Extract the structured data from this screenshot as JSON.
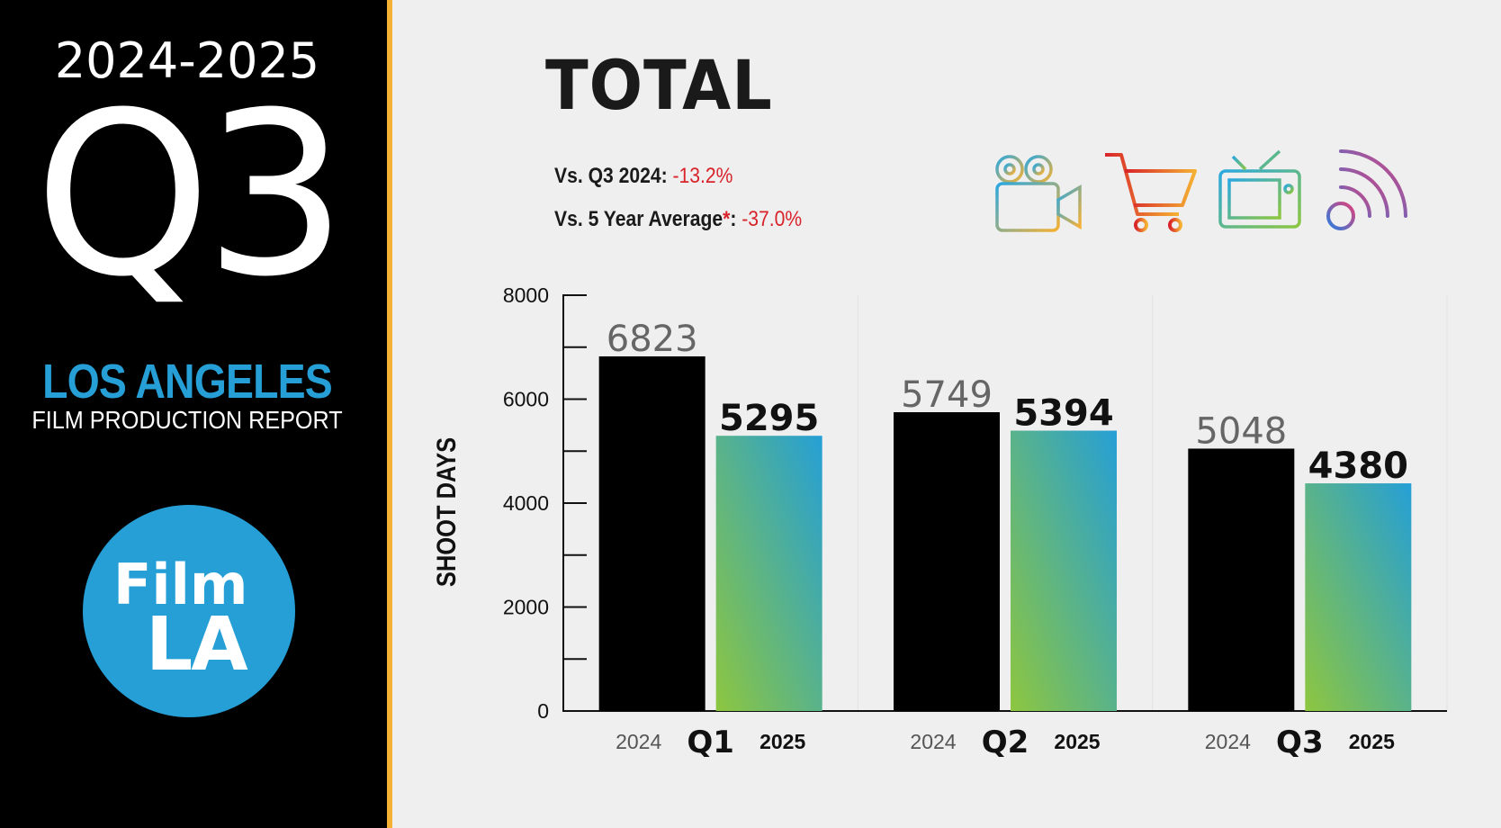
{
  "sidebar": {
    "years": "2024-2025",
    "quarter": "Q3",
    "city": "LOS ANGELES",
    "report": "FILM PRODUCTION REPORT",
    "logo_line1": "Film",
    "logo_line2": "LA"
  },
  "header": {
    "title": "TOTAL",
    "cmp1_label": "Vs. Q3 2024: ",
    "cmp1_value": "-13.2%",
    "cmp2_label": "Vs. 5 Year Average",
    "cmp2_asterisk": "*",
    "cmp2_colon": ": ",
    "cmp2_value": "-37.0%"
  },
  "icons": [
    "film-camera-icon",
    "shopping-cart-icon",
    "television-icon",
    "streaming-signal-icon"
  ],
  "colors": {
    "sidebar_bg": "#000000",
    "accent_rule": "#f5b133",
    "brand_blue": "#259fd6",
    "negative_red": "#d8232a",
    "bar_2024": "#000000",
    "bar_2025_gradient_top": "#259fd6",
    "bar_2025_gradient_bottom": "#8dc63f"
  },
  "chart_data": {
    "type": "bar",
    "ylabel": "SHOOT DAYS",
    "ylim": [
      0,
      8000
    ],
    "yticks": [
      0,
      2000,
      4000,
      6000,
      8000
    ],
    "categories": [
      "Q1",
      "Q2",
      "Q3"
    ],
    "series": [
      {
        "name": "2024",
        "values": [
          6823,
          5749,
          5048
        ]
      },
      {
        "name": "2025",
        "values": [
          5295,
          5394,
          4380
        ]
      }
    ]
  }
}
